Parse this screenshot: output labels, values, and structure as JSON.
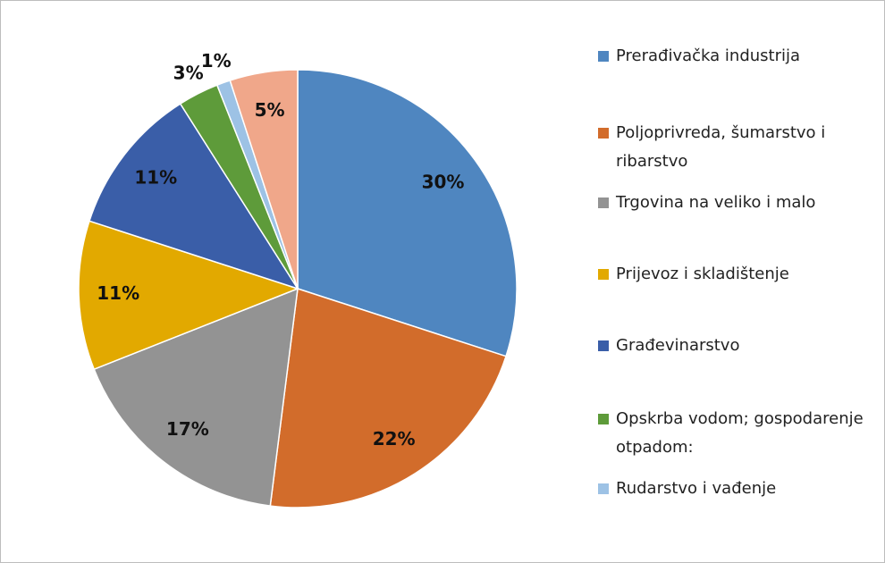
{
  "chart_data": {
    "type": "pie",
    "categories": [
      "Prerađivačka industrija",
      "Poljoprivreda, šumarstvo i ribarstvo",
      "Trgovina na veliko i malo",
      "Prijevoz i skladištenje",
      "Građevinarstvo",
      "Opskrba vodom; gospodarenje otpadom:",
      "Rudarstvo i vađenje",
      null
    ],
    "values": [
      30,
      22,
      17,
      11,
      11,
      3,
      1,
      5
    ],
    "value_labels": [
      "30%",
      "22%",
      "17%",
      "11%",
      "11%",
      "3%",
      "1%",
      "5%"
    ],
    "colors": [
      "#4f86c0",
      "#d26c2b",
      "#939393",
      "#e2a900",
      "#3a5ea8",
      "#5e9b3a",
      "#9dc2e5",
      "#f0a78a"
    ],
    "legend": "right"
  }
}
